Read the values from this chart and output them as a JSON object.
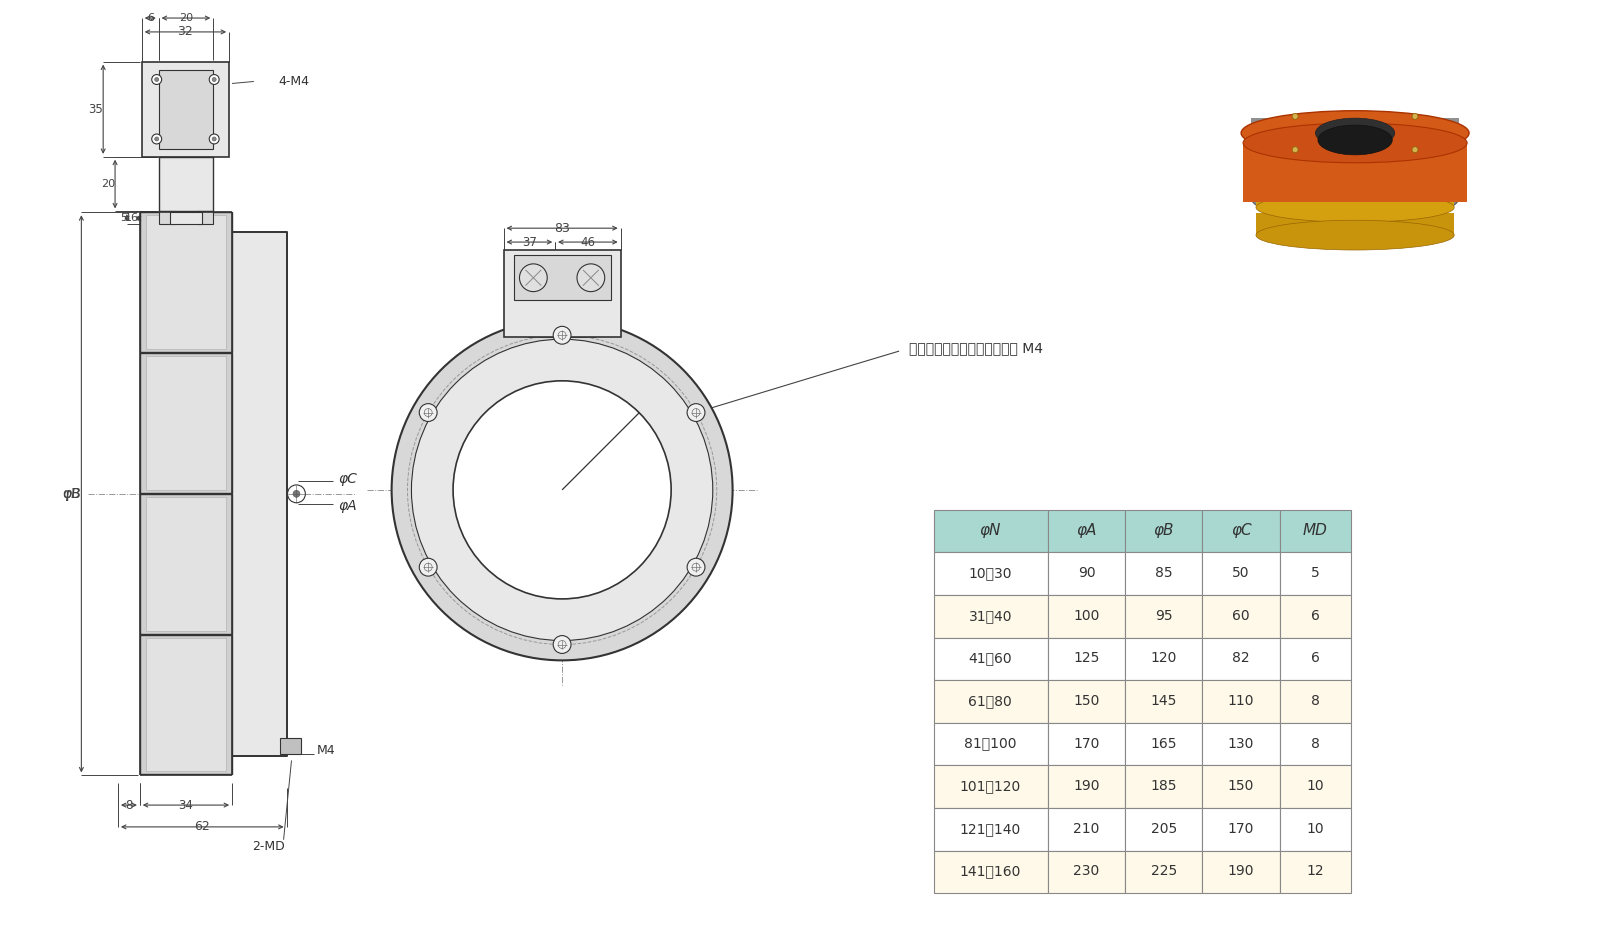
{
  "bg_color": "#ffffff",
  "lc": "#333333",
  "dim_c": "#444444",
  "cl_c": "#999999",
  "fill_body": "#d8d8d8",
  "fill_plate": "#e8e8e8",
  "fill_dark": "#b8b8b8",
  "fill_ring": "#d0d0d0",
  "table_header_bg": "#a8d8d0",
  "table_row_bg1": "#ffffff",
  "table_row_bg2": "#fef9e8",
  "table_border": "#888888",
  "table_headers": [
    "φN",
    "φA",
    "φB",
    "φC",
    "MD"
  ],
  "table_rows": [
    [
      "10～30",
      "90",
      "85",
      "50",
      "5"
    ],
    [
      "31～40",
      "100",
      "95",
      "60",
      "6"
    ],
    [
      "41～60",
      "125",
      "120",
      "82",
      "6"
    ],
    [
      "61～80",
      "150",
      "145",
      "110",
      "8"
    ],
    [
      "81～100",
      "170",
      "165",
      "130",
      "8"
    ],
    [
      "101～120",
      "190",
      "185",
      "150",
      "10"
    ],
    [
      "121～140",
      "210",
      "205",
      "170",
      "10"
    ],
    [
      "141～160",
      "230",
      "225",
      "190",
      "12"
    ]
  ],
  "annotation_text": "極リングターミナルスタット M4",
  "dim_32": "32",
  "dim_6": "6",
  "dim_20": "20",
  "dim_4M4": "4-M4",
  "dim_35": "35",
  "dim_20b": "20",
  "dim_5": "5",
  "dim_16": "16",
  "dim_phiB": "φB",
  "dim_phiC": "φC",
  "dim_phiA": "φA",
  "dim_8": "8",
  "dim_34": "34",
  "dim_M4": "M4",
  "dim_62": "62",
  "dim_2MD": "2-MD",
  "dim_83": "83",
  "dim_37": "37",
  "dim_46": "46",
  "dim_phiN": "φN"
}
